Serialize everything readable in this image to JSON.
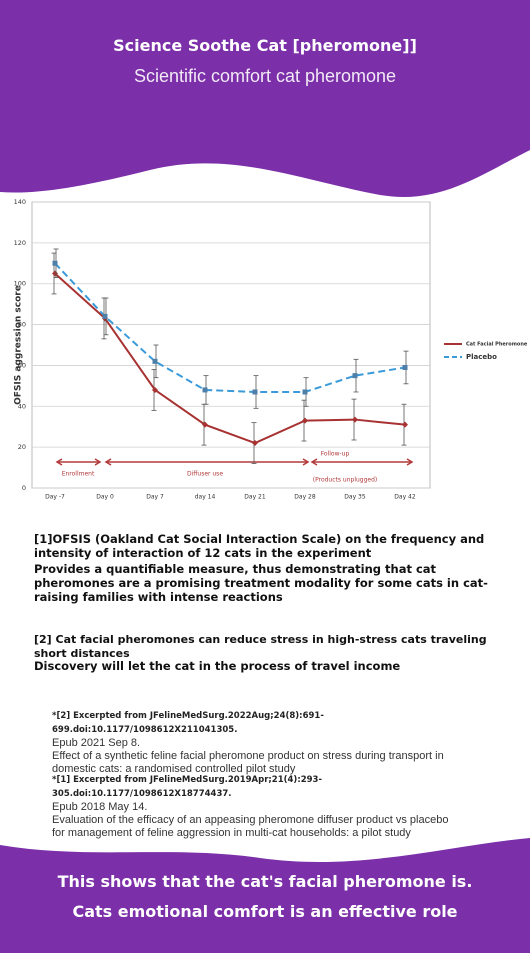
{
  "header": {
    "title": "Science Soothe Cat [pheromone]]",
    "subtitle": "Scientific comfort cat pheromone"
  },
  "chart_data": {
    "type": "line",
    "y_label": "OFSIS aggression score",
    "categories": [
      "Day -7",
      "Day 0",
      "Day 7",
      "day 14",
      "Day 21",
      "Day 28",
      "Day 35",
      "Day 42"
    ],
    "series": [
      {
        "name": "Cat Facial Pheromone",
        "color": "#a83232",
        "values": [
          105,
          83,
          48,
          31,
          22,
          33,
          33.5,
          31
        ],
        "errors": [
          10,
          10,
          10,
          10,
          10,
          10,
          10,
          10
        ]
      },
      {
        "name": "Placebo",
        "color": "#3a9ad9",
        "values": [
          110,
          84,
          62,
          48,
          47,
          47,
          55,
          59
        ],
        "errors": [
          7,
          9,
          8,
          7,
          8,
          7,
          8,
          8
        ]
      }
    ],
    "ylim": [
      0,
      140
    ],
    "yticks": [
      0,
      20,
      40,
      60,
      80,
      100,
      120,
      140
    ],
    "grid": true,
    "annotations": [
      "Enrollment",
      "Diffuser use",
      "Follow-up",
      "(Products unplugged)"
    ]
  },
  "notes": [
    "[1]OFSIS (Oakland Cat Social Interaction Scale) on the frequency and intensity of interaction of 12 cats in the experiment",
    "Provides a quantifiable measure, thus demonstrating that cat pheromones are a promising treatment modality for some cats in cat-raising families with intense reactions",
    "[2] Cat facial pheromones can reduce stress in high-stress cats traveling short distances",
    "Discovery will let the cat in the process of travel income"
  ],
  "references": [
    {
      "source": "*[2] Excerpted from JFelineMedSurg.2022Aug;24(8):691-699.doi:10.1177/1098612X211041305.",
      "epub": "Epub 2021 Sep 8.",
      "title": "Effect of a synthetic feline facial pheromone product on stress during transport in domestic cats: a randomised controlled pilot study"
    },
    {
      "source": "*[1] Excerpted from JFelineMedSurg.2019Apr;21(4):293-305.doi:10.1177/1098612X18774437.",
      "epub": "Epub 2018 May 14.",
      "title": "Evaluation of the efficacy of an appeasing pheromone diffuser product vs placebo for management of feline aggression in multi-cat households: a pilot study"
    }
  ],
  "footer": [
    "This shows that the cat's facial pheromone is.",
    "Cats emotional comfort is an effective role"
  ]
}
